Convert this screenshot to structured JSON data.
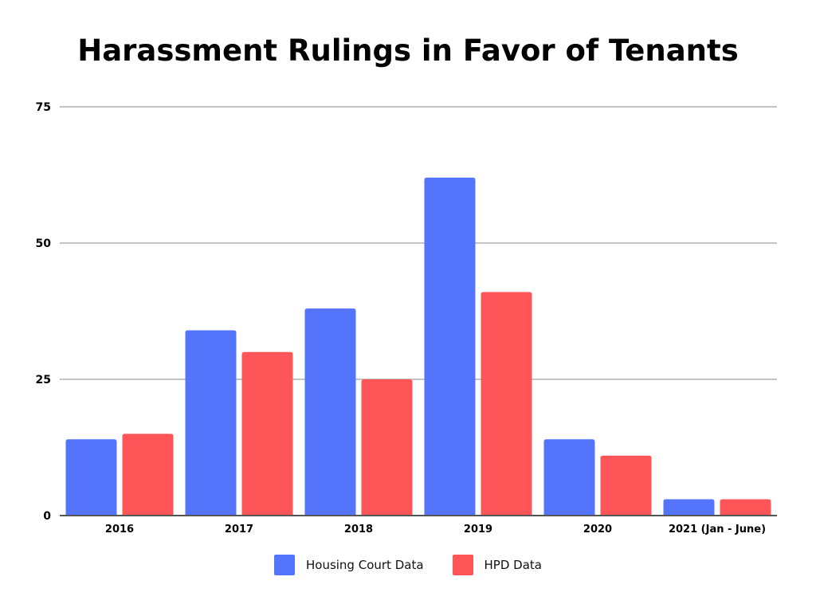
{
  "chart_data": {
    "type": "bar",
    "title": "Harassment Rulings in Favor of Tenants",
    "categories": [
      "2016",
      "2017",
      "2018",
      "2019",
      "2020",
      "2021 (Jan - June)"
    ],
    "series": [
      {
        "name": "Housing Court Data",
        "values": [
          14,
          34,
          38,
          62,
          14,
          3
        ],
        "color": "#5474FC"
      },
      {
        "name": "HPD Data",
        "values": [
          15,
          30,
          25,
          41,
          11,
          3
        ],
        "color": "#FE5558"
      }
    ],
    "y_ticks": [
      "0",
      "25",
      "50",
      "75"
    ],
    "ylim": [
      0,
      75
    ],
    "grid": true,
    "legend_position": "bottom"
  }
}
